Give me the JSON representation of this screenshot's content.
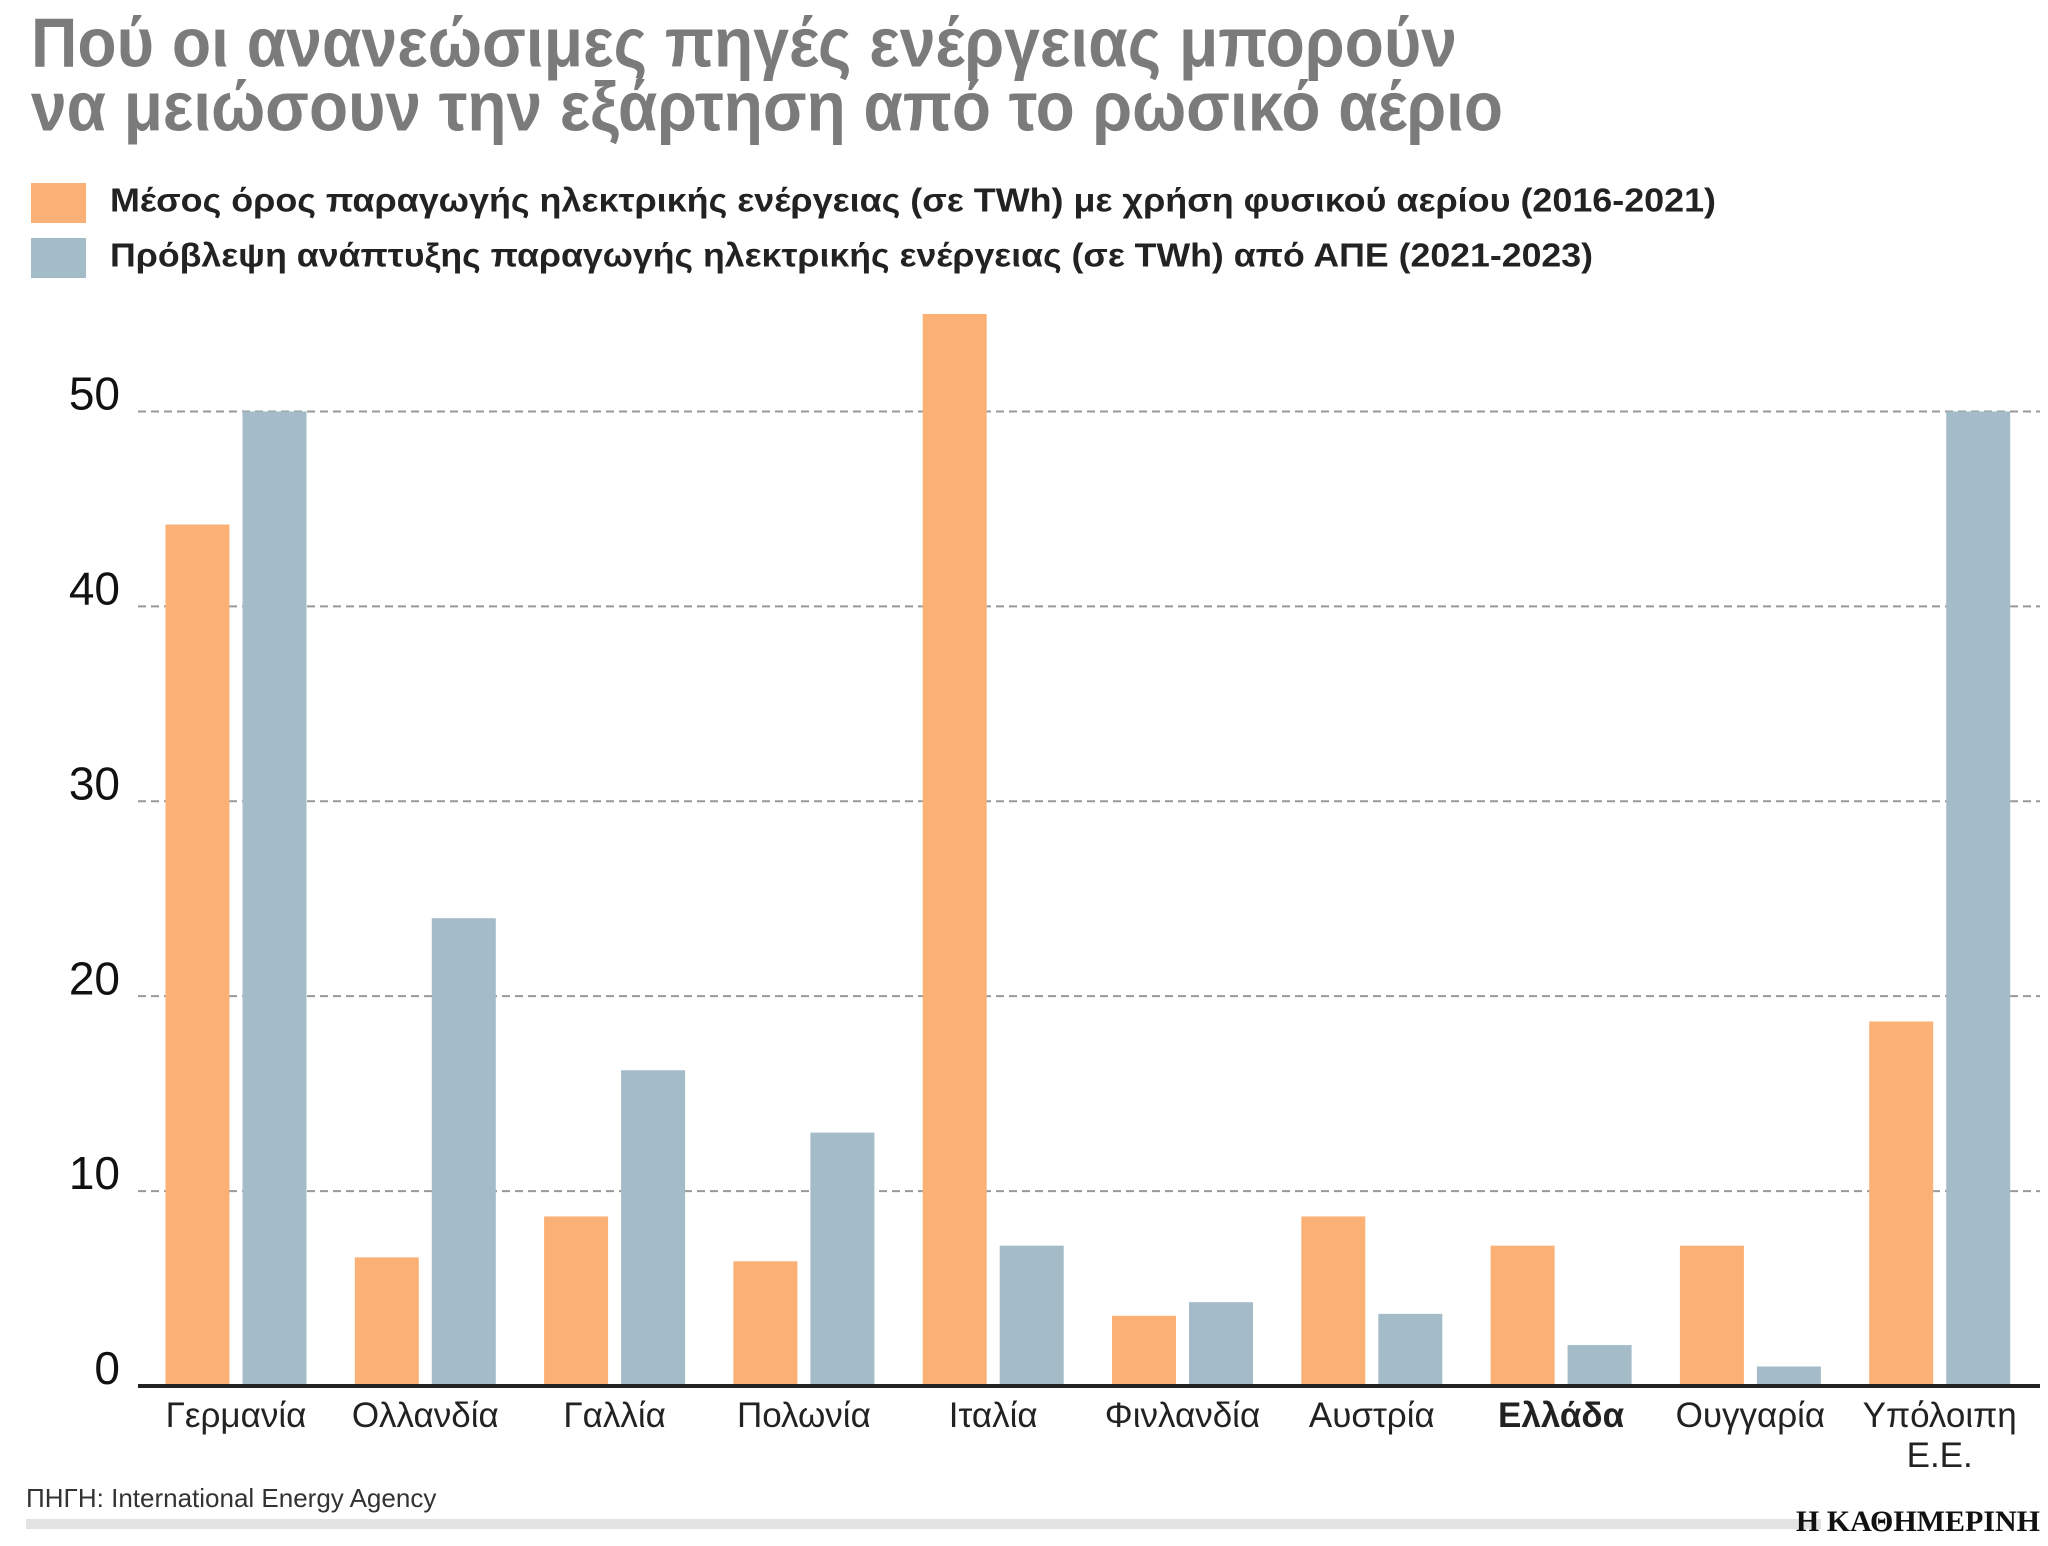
{
  "chart_data": {
    "type": "bar",
    "title": [
      "Πού οι ανανεώσιμες πηγές ενέργειας μπορούν",
      "να μειώσουν την εξάρτηση από το ρωσικό αέριο"
    ],
    "categories": [
      "Γερμανία",
      "Ολλανδία",
      "Γαλλία",
      "Πολωνία",
      "Ιταλία",
      "Φινλανδία",
      "Αυστρία",
      "Ελλάδα",
      "Ουγγαρία",
      "Υπόλοιπη Ε.Ε."
    ],
    "highlight": "Ελλάδα",
    "series": [
      {
        "name": "Μέσος όρος παραγωγής ηλεκτρικής ενέργειας (σε TWh) με χρήση φυσικού αερίου (2016-2021)",
        "color": "#fbb176",
        "values": [
          44.2,
          6.6,
          8.7,
          6.4,
          55,
          3.6,
          8.7,
          7.2,
          7.2,
          18.7
        ]
      },
      {
        "name": "Πρόβλεψη ανάπτυξης παραγωγής ηλεκτρικής ενέργειας (σε TWh) από ΑΠΕ (2021-2023)",
        "color": "#a3bcc8",
        "values": [
          50,
          24.0,
          16.2,
          13.0,
          7.2,
          4.3,
          3.7,
          2.1,
          1.0,
          50
        ]
      }
    ],
    "ylim": [
      0,
      55
    ],
    "yticks": [
      0,
      10,
      20,
      30,
      40,
      50
    ],
    "grid": true,
    "source": "ΠΗΓΗ: International Energy Agency",
    "brand": "Η ΚΑΘΗΜΕΡΙΝΗ"
  }
}
